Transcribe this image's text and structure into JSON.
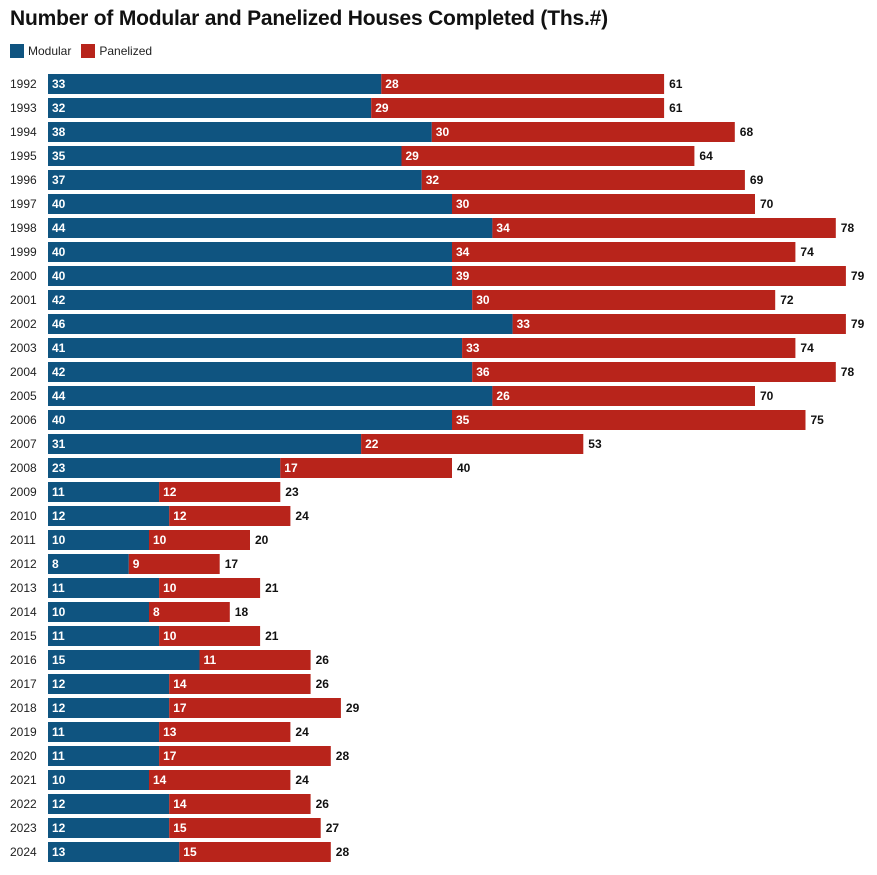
{
  "chart_data": {
    "type": "bar",
    "orientation": "horizontal",
    "stacked": true,
    "title": "Number of Modular and Panelized Houses Completed (Ths.#)",
    "legend": {
      "position": "top-left"
    },
    "categories": [
      "1992",
      "1993",
      "1994",
      "1995",
      "1996",
      "1997",
      "1998",
      "1999",
      "2000",
      "2001",
      "2002",
      "2003",
      "2004",
      "2005",
      "2006",
      "2007",
      "2008",
      "2009",
      "2010",
      "2011",
      "2012",
      "2013",
      "2014",
      "2015",
      "2016",
      "2017",
      "2018",
      "2019",
      "2020",
      "2021",
      "2022",
      "2023",
      "2024"
    ],
    "series": [
      {
        "name": "Modular",
        "color": "#0f5480",
        "values": [
          33,
          32,
          38,
          35,
          37,
          40,
          44,
          40,
          40,
          42,
          46,
          41,
          42,
          44,
          40,
          31,
          23,
          11,
          12,
          10,
          8,
          11,
          10,
          11,
          15,
          12,
          12,
          11,
          11,
          10,
          12,
          12,
          13
        ]
      },
      {
        "name": "Panelized",
        "color": "#b8241b",
        "values": [
          28,
          29,
          30,
          29,
          32,
          30,
          34,
          34,
          39,
          30,
          33,
          33,
          36,
          26,
          35,
          22,
          17,
          12,
          12,
          10,
          9,
          10,
          8,
          10,
          11,
          14,
          17,
          13,
          17,
          14,
          14,
          15,
          15
        ]
      }
    ],
    "totals": [
      61,
      61,
      68,
      64,
      69,
      70,
      78,
      74,
      79,
      72,
      79,
      74,
      78,
      70,
      75,
      53,
      40,
      23,
      24,
      20,
      17,
      21,
      18,
      21,
      26,
      26,
      29,
      24,
      28,
      24,
      26,
      27,
      28
    ]
  }
}
